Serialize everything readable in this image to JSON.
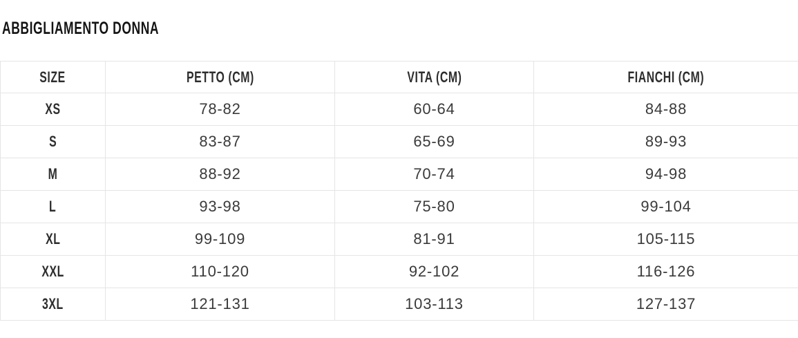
{
  "page": {
    "title": "ABBIGLIAMENTO DONNA"
  },
  "table": {
    "columns": [
      "SIZE",
      "PETTO (CM)",
      "VITA (CM)",
      "FIANCHI (CM)"
    ],
    "rows": [
      {
        "size": "XS",
        "petto": "78-82",
        "vita": "60-64",
        "fianchi": "84-88"
      },
      {
        "size": "S",
        "petto": "83-87",
        "vita": "65-69",
        "fianchi": "89-93"
      },
      {
        "size": "M",
        "petto": "88-92",
        "vita": "70-74",
        "fianchi": "94-98"
      },
      {
        "size": "L",
        "petto": "93-98",
        "vita": "75-80",
        "fianchi": "99-104"
      },
      {
        "size": "XL",
        "petto": "99-109",
        "vita": "81-91",
        "fianchi": "105-115"
      },
      {
        "size": "XXL",
        "petto": "110-120",
        "vita": "92-102",
        "fianchi": "116-126"
      },
      {
        "size": "3XL",
        "petto": "121-131",
        "vita": "103-113",
        "fianchi": "127-137"
      }
    ]
  },
  "colors": {
    "border": "#e5e5e5",
    "title_text": "#141414",
    "header_text": "#2d2d2d",
    "cell_text": "#3a3a3a",
    "background": "#ffffff"
  }
}
